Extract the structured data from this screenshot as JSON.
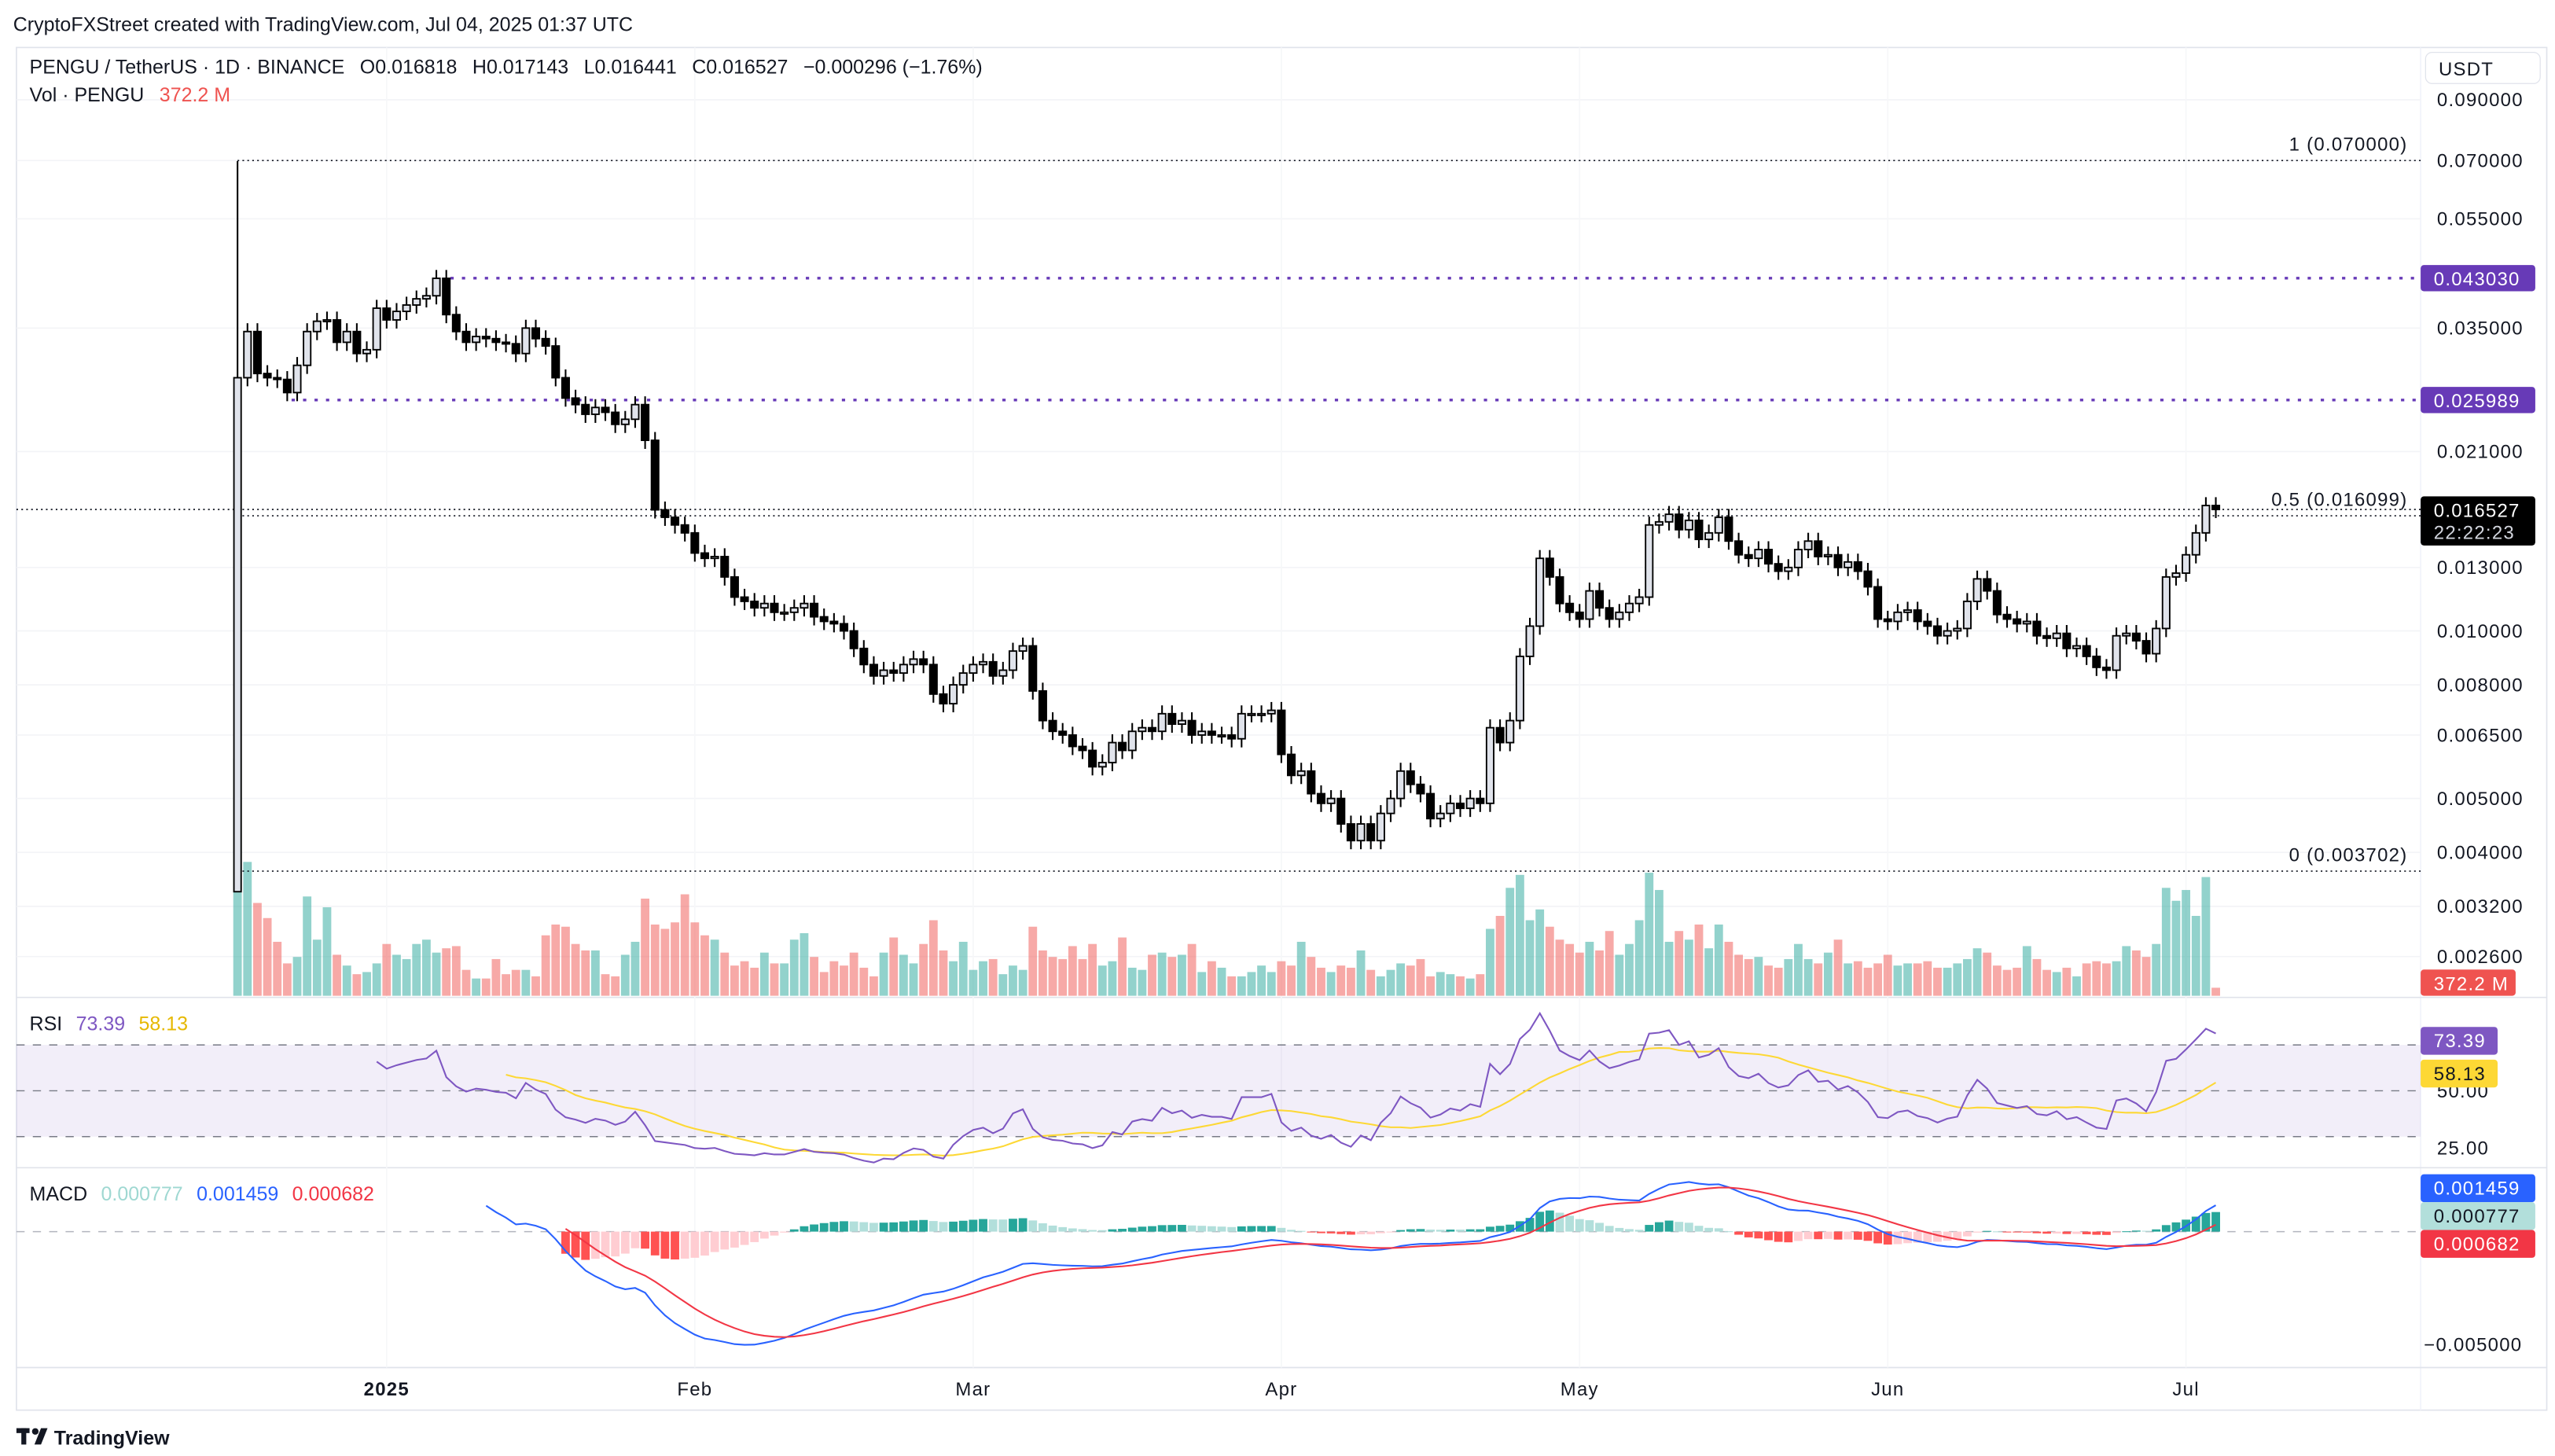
{
  "header": {
    "attribution": "CryptoFXStreet created with TradingView.com, Jul 04, 2025 01:37 UTC"
  },
  "legend": {
    "symbol": "PENGU / TetherUS · 1D · BINANCE",
    "ohlc": [
      {
        "k": "O",
        "v": "0.016818"
      },
      {
        "k": "H",
        "v": "0.017143"
      },
      {
        "k": "L",
        "v": "0.016441"
      },
      {
        "k": "C",
        "v": "0.016527"
      }
    ],
    "change": "−0.000296 (−1.76%)",
    "vol_label": "Vol · PENGU",
    "vol_value": "372.2 M"
  },
  "price_axis": {
    "currency": "USDT",
    "ticks": [
      "0.090000",
      "0.070000",
      "0.055000",
      "0.035000",
      "0.021000",
      "0.013000",
      "0.010000",
      "0.008000",
      "0.006500",
      "0.005000",
      "0.004000",
      "0.003200",
      "0.002600"
    ]
  },
  "fib_levels": [
    {
      "label": "1 (0.070000)",
      "price": 0.07
    },
    {
      "label": "0.5 (0.016099)",
      "price": 0.016099
    },
    {
      "label": "0 (0.003702)",
      "price": 0.003702
    }
  ],
  "horizontal_lines": [
    {
      "label": "0.043030",
      "price": 0.04303,
      "color": "#673ab7"
    },
    {
      "label": "0.025989",
      "price": 0.025989,
      "color": "#673ab7"
    }
  ],
  "last_price": {
    "label": "0.016527",
    "countdown": "22:22:23",
    "price": 0.016527
  },
  "volume_badge": {
    "label": "372.2 M",
    "color": "#ef5350"
  },
  "rsi": {
    "title": "RSI",
    "value": "73.39",
    "ma_value": "58.13",
    "ticks": [
      "50.00",
      "25.00"
    ],
    "colors": {
      "rsi": "#7e57c2",
      "ma": "#fdd835"
    }
  },
  "macd": {
    "title": "MACD",
    "hist": "0.000777",
    "macd": "0.001459",
    "signal": "0.000682",
    "ticks": [
      "−0.005000"
    ],
    "colors": {
      "macd": "#2962ff",
      "signal": "#f23645",
      "hist": "#26a69a"
    }
  },
  "time_axis": [
    {
      "label": "2025",
      "date": "2025-01-01"
    },
    {
      "label": "Feb",
      "date": "2025-02-01"
    },
    {
      "label": "Mar",
      "date": "2025-03-01"
    },
    {
      "label": "Apr",
      "date": "2025-04-01"
    },
    {
      "label": "May",
      "date": "2025-05-01"
    },
    {
      "label": "Jun",
      "date": "2025-06-01"
    },
    {
      "label": "Jul",
      "date": "2025-07-01"
    }
  ],
  "footer": {
    "brand": "TradingView"
  },
  "chart_data": {
    "type": "candlestick",
    "interval": "1D",
    "y_scale": "log",
    "ylim": [
      0.0023,
      0.095
    ],
    "colors": {
      "up_body": "#e0e3eb",
      "down_body": "#000000",
      "vol_up": "#26a69a",
      "vol_down": "#ef5350"
    },
    "first_open": 0.0034,
    "months": [
      {
        "month": "2024-12",
        "first_day": 17,
        "close": [
          0.0285,
          0.0345,
          0.029,
          0.0285,
          0.0283,
          0.0268,
          0.03,
          0.0345,
          0.036,
          0.0362,
          0.033,
          0.0345,
          0.0315,
          0.032,
          0.038
        ],
        "volume_m": [
          11000,
          6200,
          4300,
          3600,
          2500,
          1500,
          1800,
          4600,
          2600,
          4100,
          1900,
          1400,
          1000,
          1100,
          1500
        ]
      },
      {
        "month": "2025-01",
        "first_day": 1,
        "close": [
          0.0362,
          0.0375,
          0.0385,
          0.0395,
          0.04,
          0.043,
          0.037,
          0.0345,
          0.033,
          0.0338,
          0.0335,
          0.033,
          0.0328,
          0.0315,
          0.035,
          0.0335,
          0.0325,
          0.0285,
          0.0262,
          0.0255,
          0.0245,
          0.0252,
          0.0247,
          0.0235,
          0.024,
          0.0255,
          0.022,
          0.0165,
          0.016,
          0.0155,
          0.015
        ],
        "volume_m": [
          2400,
          1900,
          1700,
          2400,
          2600,
          2000,
          2200,
          2300,
          1200,
          800,
          800,
          1700,
          1000,
          1200,
          1200,
          900,
          2800,
          3300,
          3200,
          2400,
          2100,
          2100,
          1000,
          900,
          1900,
          2500,
          4500,
          3300,
          3100,
          3400,
          4700
        ]
      },
      {
        "month": "2025-02",
        "first_day": 1,
        "close": [
          0.0138,
          0.0135,
          0.0136,
          0.0125,
          0.0115,
          0.0113,
          0.011,
          0.0112,
          0.0108,
          0.0108,
          0.011,
          0.0112,
          0.0106,
          0.0104,
          0.0103,
          0.01,
          0.0093,
          0.0087,
          0.0083,
          0.0085,
          0.0084,
          0.0087,
          0.0089,
          0.0087,
          0.0077,
          0.0074,
          0.008,
          0.0084
        ],
        "volume_m": [
          3400,
          2800,
          2600,
          2000,
          1400,
          1600,
          1300,
          2000,
          1500,
          1500,
          2600,
          2900,
          1800,
          1100,
          1600,
          1400,
          2000,
          1300,
          900,
          2000,
          2700,
          1900,
          1500,
          2400,
          3500,
          2100,
          1600,
          2500
        ]
      },
      {
        "month": "2025-03",
        "first_day": 1,
        "close": [
          0.0087,
          0.0088,
          0.0083,
          0.0085,
          0.0092,
          0.0094,
          0.0078,
          0.0069,
          0.0066,
          0.0065,
          0.0062,
          0.0061,
          0.0057,
          0.0058,
          0.0063,
          0.0061,
          0.0066,
          0.0067,
          0.0066,
          0.0071,
          0.0068,
          0.0069,
          0.0065,
          0.0066,
          0.0065,
          0.0065,
          0.0064,
          0.0071,
          0.0071,
          0.0071,
          0.0072
        ],
        "volume_m": [
          1200,
          1600,
          1700,
          1000,
          1400,
          1200,
          3200,
          2100,
          1800,
          1700,
          2300,
          1700,
          2400,
          1400,
          1600,
          2700,
          1300,
          1200,
          1900,
          2000,
          1800,
          1900,
          2400,
          1100,
          1600,
          1300,
          900,
          900,
          1100,
          1400,
          1100
        ]
      },
      {
        "month": "2025-04",
        "first_day": 1,
        "close": [
          0.006,
          0.0055,
          0.0056,
          0.0051,
          0.0049,
          0.005,
          0.0045,
          0.0042,
          0.0045,
          0.0042,
          0.0047,
          0.005,
          0.0056,
          0.0053,
          0.0051,
          0.0046,
          0.0047,
          0.0049,
          0.0048,
          0.005,
          0.0049,
          0.0067,
          0.0063,
          0.0069,
          0.009,
          0.0102,
          0.0135,
          0.0125,
          0.0112,
          0.0108
        ],
        "volume_m": [
          1600,
          1400,
          2500,
          1800,
          1300,
          1100,
          1400,
          1300,
          2100,
          1200,
          900,
          1200,
          1500,
          1400,
          1700,
          900,
          1100,
          1000,
          900,
          800,
          1000,
          3100,
          3700,
          5000,
          5600,
          3500,
          4000,
          3200,
          2600,
          2400
        ]
      },
      {
        "month": "2025-05",
        "first_day": 1,
        "close": [
          0.0105,
          0.0118,
          0.011,
          0.0105,
          0.0108,
          0.0112,
          0.0115,
          0.0155,
          0.0157,
          0.0162,
          0.0152,
          0.0158,
          0.0146,
          0.015,
          0.016,
          0.0145,
          0.0137,
          0.0135,
          0.014,
          0.0132,
          0.0128,
          0.013,
          0.014,
          0.0145,
          0.0136,
          0.0137,
          0.013,
          0.0133,
          0.0128,
          0.012,
          0.0105
        ],
        "volume_m": [
          2000,
          2500,
          2100,
          3000,
          1900,
          2400,
          3500,
          5700,
          4900,
          2500,
          3000,
          2600,
          3300,
          2200,
          3300,
          2500,
          1900,
          1700,
          1800,
          1400,
          1300,
          1700,
          2400,
          1700,
          1500,
          2000,
          2600,
          1500,
          1600,
          1300,
          1500
        ]
      },
      {
        "month": "2025-06",
        "first_day": 1,
        "close": [
          0.0104,
          0.0108,
          0.0109,
          0.0104,
          0.0102,
          0.0098,
          0.01,
          0.0101,
          0.0113,
          0.0124,
          0.0118,
          0.0107,
          0.0105,
          0.0103,
          0.0104,
          0.0098,
          0.0097,
          0.0099,
          0.0093,
          0.0094,
          0.009,
          0.0086,
          0.0085,
          0.0098,
          0.0099,
          0.0096,
          0.0091,
          0.0101,
          0.0125,
          0.0127
        ],
        "volume_m": [
          1900,
          1400,
          1500,
          1500,
          1600,
          1300,
          1300,
          1500,
          1700,
          2200,
          2000,
          1400,
          1200,
          1300,
          2300,
          1700,
          1200,
          1100,
          1300,
          900,
          1500,
          1600,
          1500,
          1600,
          2300,
          2100,
          1800,
          2400,
          5000,
          4400
        ]
      },
      {
        "month": "2025-07",
        "first_day": 1,
        "close": [
          0.0137,
          0.015,
          0.0168,
          0.016527
        ],
        "volume_m": [
          4900,
          3700,
          5500,
          372.2
        ]
      }
    ]
  }
}
